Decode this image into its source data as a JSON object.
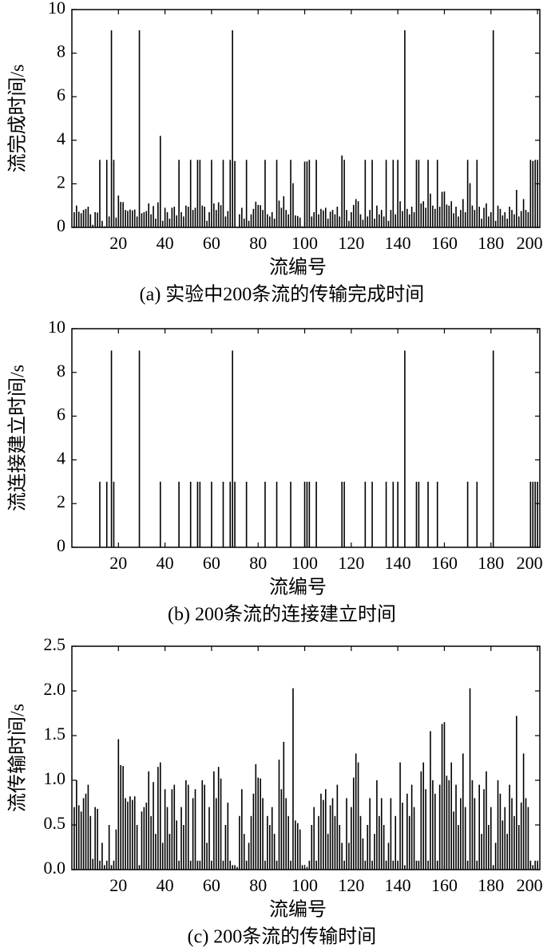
{
  "chart_data": [
    {
      "type": "bar",
      "ylabel": "流完成时间/s",
      "xlabel": "流编号",
      "caption": "(a) 实验中200条流的传输完成时间",
      "color": "#000000",
      "x": [
        1,
        2,
        3,
        4,
        5,
        6,
        7,
        8,
        9,
        10,
        11,
        12,
        13,
        14,
        15,
        16,
        17,
        18,
        19,
        20,
        21,
        22,
        23,
        24,
        25,
        26,
        27,
        28,
        29,
        30,
        31,
        32,
        33,
        34,
        35,
        36,
        37,
        38,
        39,
        40,
        41,
        42,
        43,
        44,
        45,
        46,
        47,
        48,
        49,
        50,
        51,
        52,
        53,
        54,
        55,
        56,
        57,
        58,
        59,
        60,
        61,
        62,
        63,
        64,
        65,
        66,
        67,
        68,
        69,
        70,
        71,
        72,
        73,
        74,
        75,
        76,
        77,
        78,
        79,
        80,
        81,
        82,
        83,
        84,
        85,
        86,
        87,
        88,
        89,
        90,
        91,
        92,
        93,
        94,
        95,
        96,
        97,
        98,
        99,
        100,
        101,
        102,
        103,
        104,
        105,
        106,
        107,
        108,
        109,
        110,
        111,
        112,
        113,
        114,
        115,
        116,
        117,
        118,
        119,
        120,
        121,
        122,
        123,
        124,
        125,
        126,
        127,
        128,
        129,
        130,
        131,
        132,
        133,
        134,
        135,
        136,
        137,
        138,
        139,
        140,
        141,
        142,
        143,
        144,
        145,
        146,
        147,
        148,
        149,
        150,
        151,
        152,
        153,
        154,
        155,
        156,
        157,
        158,
        159,
        160,
        161,
        162,
        163,
        164,
        165,
        166,
        167,
        168,
        169,
        170,
        171,
        172,
        173,
        174,
        175,
        176,
        177,
        178,
        179,
        180,
        181,
        182,
        183,
        184,
        185,
        186,
        187,
        188,
        189,
        190,
        191,
        192,
        193,
        194,
        195,
        196,
        197,
        198,
        199,
        200
      ],
      "values": [
        0.7,
        1.0,
        0.72,
        0.65,
        0.8,
        0.85,
        0.95,
        0.6,
        0.12,
        0.7,
        0.68,
        3.1,
        0.3,
        0.05,
        3.1,
        0.5,
        9.05,
        3.1,
        0.45,
        1.46,
        1.17,
        1.16,
        0.8,
        0.76,
        0.82,
        0.78,
        0.82,
        0.5,
        9.05,
        0.65,
        0.7,
        0.75,
        1.1,
        0.6,
        0.98,
        0.4,
        1.15,
        4.2,
        0.3,
        0.9,
        0.7,
        0.4,
        0.9,
        0.95,
        0.55,
        3.1,
        0.7,
        0.5,
        1.0,
        0.95,
        3.1,
        0.8,
        0.9,
        3.1,
        3.1,
        1.0,
        0.95,
        0.3,
        0.7,
        3.1,
        1.1,
        0.8,
        1.15,
        1.02,
        3.1,
        0.5,
        0.75,
        3.1,
        9.05,
        3.05,
        0.03,
        0.6,
        0.9,
        0.4,
        3.1,
        0.3,
        0.6,
        0.85,
        1.18,
        1.03,
        1.02,
        0.8,
        3.1,
        0.6,
        0.5,
        0.7,
        0.4,
        3.1,
        1.23,
        0.9,
        1.43,
        0.8,
        0.6,
        3.1,
        2.03,
        0.55,
        0.52,
        0.45,
        0.05,
        3.02,
        3.03,
        3.1,
        0.5,
        0.7,
        3.1,
        0.6,
        0.85,
        0.78,
        0.9,
        0.4,
        0.72,
        0.8,
        0.6,
        0.95,
        0.5,
        3.3,
        3.1,
        0.8,
        0.3,
        0.7,
        1.03,
        1.3,
        1.2,
        0.6,
        0.35,
        3.1,
        0.5,
        0.8,
        3.1,
        0.4,
        1.0,
        0.6,
        0.8,
        0.5,
        3.1,
        0.3,
        0.8,
        3.1,
        0.6,
        3.1,
        1.2,
        0.75,
        9.05,
        0.85,
        0.6,
        0.95,
        0.7,
        3.1,
        3.1,
        1.1,
        1.2,
        0.9,
        3.1,
        1.55,
        1.0,
        0.85,
        3.1,
        0.95,
        1.63,
        1.65,
        1.05,
        1.0,
        1.2,
        0.65,
        0.95,
        0.5,
        0.8,
        1.3,
        0.7,
        3.1,
        2.03,
        1.0,
        0.8,
        3.1,
        0.95,
        0.4,
        0.9,
        1.1,
        0.5,
        0.7,
        9.05,
        0.3,
        1.0,
        0.85,
        0.55,
        0.7,
        0.4,
        0.95,
        0.8,
        0.6,
        1.72,
        0.5,
        0.75,
        1.3,
        0.8,
        0.7,
        3.1,
        3.05,
        3.1,
        3.1
      ],
      "xlim": [
        0,
        201
      ],
      "xticks": [
        20,
        40,
        60,
        80,
        100,
        120,
        140,
        160,
        180,
        200
      ],
      "ylim": [
        0,
        10
      ],
      "yticks": [
        0,
        2,
        4,
        6,
        8,
        10
      ]
    },
    {
      "type": "bar",
      "ylabel": "流连接建立时间/s",
      "xlabel": "流编号",
      "caption": "(b) 200条流的连接建立时间",
      "color": "#000000",
      "x": [
        1,
        2,
        3,
        4,
        5,
        6,
        7,
        8,
        9,
        10,
        11,
        12,
        13,
        14,
        15,
        16,
        17,
        18,
        19,
        20,
        21,
        22,
        23,
        24,
        25,
        26,
        27,
        28,
        29,
        30,
        31,
        32,
        33,
        34,
        35,
        36,
        37,
        38,
        39,
        40,
        41,
        42,
        43,
        44,
        45,
        46,
        47,
        48,
        49,
        50,
        51,
        52,
        53,
        54,
        55,
        56,
        57,
        58,
        59,
        60,
        61,
        62,
        63,
        64,
        65,
        66,
        67,
        68,
        69,
        70,
        71,
        72,
        73,
        74,
        75,
        76,
        77,
        78,
        79,
        80,
        81,
        82,
        83,
        84,
        85,
        86,
        87,
        88,
        89,
        90,
        91,
        92,
        93,
        94,
        95,
        96,
        97,
        98,
        99,
        100,
        101,
        102,
        103,
        104,
        105,
        106,
        107,
        108,
        109,
        110,
        111,
        112,
        113,
        114,
        115,
        116,
        117,
        118,
        119,
        120,
        121,
        122,
        123,
        124,
        125,
        126,
        127,
        128,
        129,
        130,
        131,
        132,
        133,
        134,
        135,
        136,
        137,
        138,
        139,
        140,
        141,
        142,
        143,
        144,
        145,
        146,
        147,
        148,
        149,
        150,
        151,
        152,
        153,
        154,
        155,
        156,
        157,
        158,
        159,
        160,
        161,
        162,
        163,
        164,
        165,
        166,
        167,
        168,
        169,
        170,
        171,
        172,
        173,
        174,
        175,
        176,
        177,
        178,
        179,
        180,
        181,
        182,
        183,
        184,
        185,
        186,
        187,
        188,
        189,
        190,
        191,
        192,
        193,
        194,
        195,
        196,
        197,
        198,
        199,
        200
      ],
      "values": [
        0,
        0,
        0,
        0,
        0,
        0,
        0,
        0,
        0,
        0,
        0,
        3,
        0,
        0,
        3,
        0,
        9,
        3,
        0,
        0,
        0,
        0,
        0,
        0,
        0,
        0,
        0,
        0,
        9,
        0,
        0,
        0,
        0,
        0,
        0,
        0,
        0,
        3,
        0,
        0,
        0,
        0,
        0,
        0,
        0,
        3,
        0,
        0,
        0,
        0,
        3,
        0,
        0,
        3,
        3,
        0,
        0,
        0,
        0,
        3,
        0,
        0,
        0,
        0,
        3,
        0,
        0,
        3,
        9,
        3,
        0,
        0,
        0,
        0,
        3,
        0,
        0,
        0,
        0,
        0,
        0,
        0,
        3,
        0,
        0,
        0,
        0,
        3,
        0,
        0,
        0,
        0,
        0,
        3,
        0,
        0,
        0,
        0,
        0,
        3,
        3,
        3,
        0,
        0,
        3,
        0,
        0,
        0,
        0,
        0,
        0,
        0,
        0,
        0,
        0,
        3,
        3,
        0,
        0,
        0,
        0,
        0,
        0,
        0,
        0,
        3,
        0,
        0,
        3,
        0,
        0,
        0,
        0,
        0,
        3,
        0,
        0,
        3,
        0,
        3,
        0,
        0,
        9,
        0,
        0,
        0,
        0,
        3,
        3,
        0,
        0,
        0,
        3,
        0,
        0,
        0,
        3,
        0,
        0,
        0,
        0,
        0,
        0,
        0,
        0,
        0,
        0,
        0,
        0,
        3,
        0,
        0,
        0,
        3,
        0,
        0,
        0,
        0,
        0,
        0,
        9,
        0,
        0,
        0,
        0,
        0,
        0,
        0,
        0,
        0,
        0,
        0,
        0,
        0,
        0,
        0,
        3,
        3,
        3,
        3
      ],
      "xlim": [
        0,
        201
      ],
      "xticks": [
        20,
        40,
        60,
        80,
        100,
        120,
        140,
        160,
        180,
        200
      ],
      "ylim": [
        0,
        10
      ],
      "yticks": [
        0,
        2,
        4,
        6,
        8,
        10
      ]
    },
    {
      "type": "bar",
      "ylabel": "流传输时间/s",
      "xlabel": "流编号",
      "caption": "(c) 200条流的传输时间",
      "color": "#000000",
      "x": [
        1,
        2,
        3,
        4,
        5,
        6,
        7,
        8,
        9,
        10,
        11,
        12,
        13,
        14,
        15,
        16,
        17,
        18,
        19,
        20,
        21,
        22,
        23,
        24,
        25,
        26,
        27,
        28,
        29,
        30,
        31,
        32,
        33,
        34,
        35,
        36,
        37,
        38,
        39,
        40,
        41,
        42,
        43,
        44,
        45,
        46,
        47,
        48,
        49,
        50,
        51,
        52,
        53,
        54,
        55,
        56,
        57,
        58,
        59,
        60,
        61,
        62,
        63,
        64,
        65,
        66,
        67,
        68,
        69,
        70,
        71,
        72,
        73,
        74,
        75,
        76,
        77,
        78,
        79,
        80,
        81,
        82,
        83,
        84,
        85,
        86,
        87,
        88,
        89,
        90,
        91,
        92,
        93,
        94,
        95,
        96,
        97,
        98,
        99,
        100,
        101,
        102,
        103,
        104,
        105,
        106,
        107,
        108,
        109,
        110,
        111,
        112,
        113,
        114,
        115,
        116,
        117,
        118,
        119,
        120,
        121,
        122,
        123,
        124,
        125,
        126,
        127,
        128,
        129,
        130,
        131,
        132,
        133,
        134,
        135,
        136,
        137,
        138,
        139,
        140,
        141,
        142,
        143,
        144,
        145,
        146,
        147,
        148,
        149,
        150,
        151,
        152,
        153,
        154,
        155,
        156,
        157,
        158,
        159,
        160,
        161,
        162,
        163,
        164,
        165,
        166,
        167,
        168,
        169,
        170,
        171,
        172,
        173,
        174,
        175,
        176,
        177,
        178,
        179,
        180,
        181,
        182,
        183,
        184,
        185,
        186,
        187,
        188,
        189,
        190,
        191,
        192,
        193,
        194,
        195,
        196,
        197,
        198,
        199,
        200
      ],
      "values": [
        0.7,
        1.0,
        0.72,
        0.65,
        0.8,
        0.85,
        0.95,
        0.6,
        0.12,
        0.7,
        0.68,
        0.1,
        0.3,
        0.05,
        0.1,
        0.5,
        0.05,
        0.1,
        0.45,
        1.46,
        1.17,
        1.16,
        0.8,
        0.76,
        0.82,
        0.78,
        0.82,
        0.5,
        0.05,
        0.65,
        0.7,
        0.75,
        1.1,
        0.6,
        0.98,
        0.4,
        1.15,
        1.2,
        0.3,
        0.9,
        0.7,
        0.4,
        0.9,
        0.95,
        0.55,
        0.1,
        0.7,
        0.5,
        1.0,
        0.95,
        0.1,
        0.8,
        0.9,
        0.1,
        0.1,
        1.0,
        0.95,
        0.3,
        0.7,
        0.1,
        1.1,
        0.8,
        1.15,
        1.02,
        0.1,
        0.5,
        0.75,
        0.1,
        0.05,
        0.05,
        0.03,
        0.6,
        0.9,
        0.4,
        0.1,
        0.3,
        0.6,
        0.85,
        1.18,
        1.03,
        1.02,
        0.8,
        0.1,
        0.6,
        0.5,
        0.7,
        0.4,
        0.1,
        1.23,
        0.9,
        1.43,
        0.8,
        0.6,
        0.1,
        2.03,
        0.55,
        0.52,
        0.45,
        0.05,
        0.02,
        0.03,
        0.1,
        0.5,
        0.7,
        0.1,
        0.6,
        0.85,
        0.78,
        0.9,
        0.4,
        0.72,
        0.8,
        0.6,
        0.95,
        0.5,
        0.3,
        0.1,
        0.8,
        0.3,
        0.7,
        1.03,
        1.3,
        1.2,
        0.6,
        0.35,
        0.1,
        0.5,
        0.8,
        0.1,
        0.4,
        1.0,
        0.6,
        0.8,
        0.5,
        0.1,
        0.3,
        0.8,
        0.1,
        0.6,
        0.1,
        1.2,
        0.75,
        0.05,
        0.85,
        0.6,
        0.95,
        0.7,
        0.1,
        0.1,
        1.1,
        1.2,
        0.9,
        0.1,
        1.55,
        1.0,
        0.85,
        0.1,
        0.95,
        1.63,
        1.65,
        1.05,
        1.0,
        1.2,
        0.65,
        0.95,
        0.5,
        0.8,
        1.3,
        0.7,
        0.1,
        2.03,
        1.0,
        0.8,
        0.1,
        0.95,
        0.4,
        0.9,
        1.1,
        0.5,
        0.7,
        0.05,
        0.3,
        1.0,
        0.85,
        0.55,
        0.7,
        0.4,
        0.95,
        0.8,
        0.6,
        1.72,
        0.5,
        0.75,
        1.3,
        0.8,
        0.7,
        0.1,
        0.05,
        0.1,
        0.1
      ],
      "xlim": [
        0,
        201
      ],
      "xticks": [
        20,
        40,
        60,
        80,
        100,
        120,
        140,
        160,
        180,
        200
      ],
      "ylim": [
        0,
        2.5
      ],
      "yticks": [
        {
          "value": 0,
          "label": "0.0"
        },
        0.5,
        {
          "value": 1,
          "label": "1.0"
        },
        1.5,
        {
          "value": 2,
          "label": "2.0"
        },
        2.5
      ]
    }
  ]
}
